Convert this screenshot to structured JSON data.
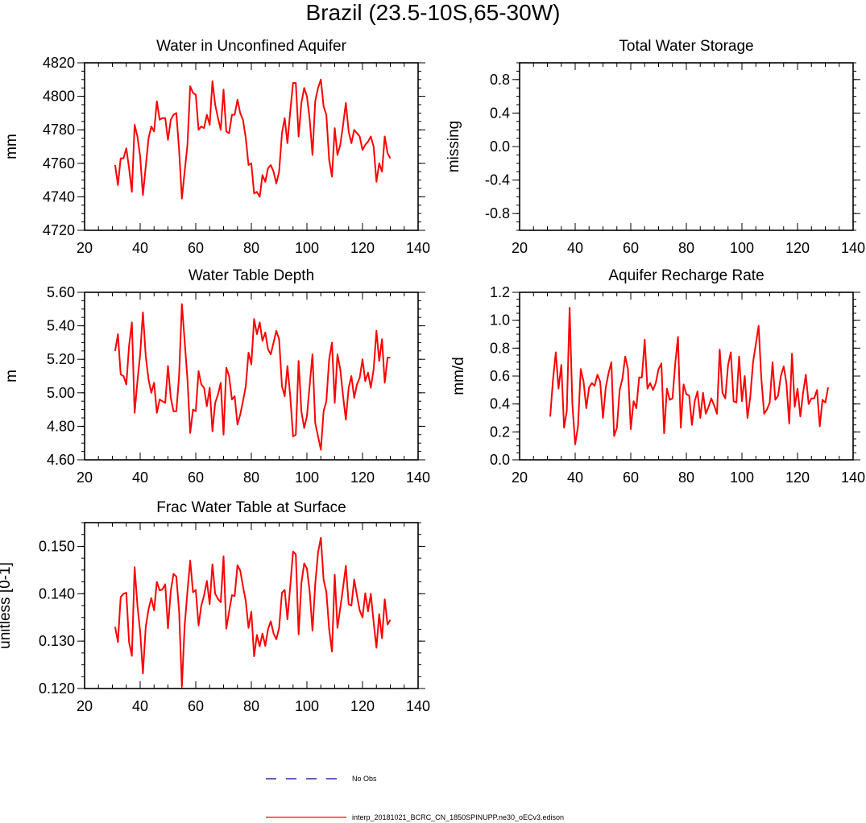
{
  "figure_title": "Brazil (23.5-10S,65-30W)",
  "colors": {
    "model": "#ff0000",
    "obs": "#00008b",
    "axis": "#000000"
  },
  "legend": {
    "obs_label": "No Obs",
    "model_label": "interp_20181021_BCRC_CN_1850SPINUPP.ne30_oECv3.edison"
  },
  "chart_data": [
    {
      "type": "line",
      "title": "Water in Unconfined Aquifer",
      "ylabel": "mm",
      "xlim": [
        20,
        140
      ],
      "ylim": [
        4720,
        4820
      ],
      "xticks": [
        20,
        40,
        60,
        80,
        100,
        120,
        140
      ],
      "yticks": [
        4720,
        4740,
        4760,
        4780,
        4800,
        4820
      ],
      "ytick_labels": [
        "4720",
        "4740",
        "4760",
        "4780",
        "4800",
        "4820"
      ],
      "series": [
        {
          "name": "model",
          "x_start": 31,
          "values": [
            4759,
            4747,
            4763,
            4763,
            4769,
            4757,
            4743,
            4783,
            4776,
            4764,
            4741,
            4758,
            4775,
            4782,
            4779,
            4797,
            4786,
            4787,
            4787,
            4774,
            4786,
            4789,
            4790,
            4768,
            4739,
            4755,
            4771,
            4806,
            4802,
            4801,
            4780,
            4782,
            4781,
            4789,
            4783,
            4809,
            4795,
            4787,
            4780,
            4804,
            4779,
            4778,
            4789,
            4789,
            4798,
            4790,
            4786,
            4775,
            4759,
            4760,
            4742,
            4743,
            4740,
            4753,
            4749,
            4757,
            4759,
            4755,
            4748,
            4755,
            4778,
            4787,
            4772,
            4791,
            4808,
            4808,
            4776,
            4796,
            4805,
            4800,
            4786,
            4765,
            4797,
            4805,
            4810,
            4794,
            4789,
            4762,
            4752,
            4781,
            4765,
            4771,
            4783,
            4796,
            4779,
            4772,
            4780,
            4778,
            4776,
            4768,
            4771,
            4773,
            4776,
            4770,
            4749,
            4760,
            4755,
            4776,
            4766,
            4763
          ]
        }
      ]
    },
    {
      "type": "line",
      "title": "Total Water Storage",
      "ylabel": "missing",
      "xlim": [
        20,
        140
      ],
      "ylim": [
        -1,
        1
      ],
      "xticks": [
        20,
        40,
        60,
        80,
        100,
        120,
        140
      ],
      "yticks": [
        -0.8,
        -0.4,
        0.0,
        0.4,
        0.8
      ],
      "ytick_labels": [
        "-0.8",
        "-0.4",
        "0.0",
        "0.4",
        "0.8"
      ],
      "series": []
    },
    {
      "type": "line",
      "title": "Water Table Depth",
      "ylabel": "m",
      "xlim": [
        20,
        140
      ],
      "ylim": [
        4.6,
        5.6
      ],
      "xticks": [
        20,
        40,
        60,
        80,
        100,
        120,
        140
      ],
      "yticks": [
        4.6,
        4.8,
        5.0,
        5.2,
        5.4,
        5.6
      ],
      "ytick_labels": [
        "4.60",
        "4.80",
        "5.00",
        "5.20",
        "5.40",
        "5.60"
      ],
      "series": [
        {
          "name": "model",
          "x_start": 31,
          "values": [
            5.25,
            5.35,
            5.11,
            5.1,
            5.05,
            5.28,
            5.42,
            4.88,
            5.07,
            5.23,
            5.48,
            5.22,
            5.08,
            5.0,
            5.06,
            4.88,
            4.96,
            4.95,
            4.94,
            5.16,
            4.97,
            4.89,
            4.89,
            5.1,
            5.53,
            5.31,
            5.08,
            4.76,
            4.9,
            4.89,
            5.13,
            5.05,
            5.03,
            4.92,
            5.03,
            4.77,
            4.94,
            4.99,
            5.06,
            4.75,
            5.15,
            5.1,
            4.96,
            4.98,
            4.81,
            4.87,
            4.95,
            5.04,
            5.24,
            5.17,
            5.44,
            5.35,
            5.42,
            5.31,
            5.36,
            5.26,
            5.23,
            5.3,
            5.37,
            5.32,
            5.04,
            4.98,
            5.16,
            4.98,
            4.74,
            4.75,
            5.19,
            4.89,
            4.79,
            4.86,
            5.05,
            5.23,
            4.82,
            4.74,
            4.66,
            4.89,
            4.95,
            5.2,
            5.3,
            4.94,
            5.23,
            5.14,
            4.98,
            4.84,
            5.03,
            5.1,
            4.97,
            5.05,
            5.09,
            5.2,
            5.07,
            5.12,
            5.03,
            5.14,
            5.37,
            5.19,
            5.32,
            5.06,
            5.21,
            5.21
          ]
        }
      ]
    },
    {
      "type": "line",
      "title": "Aquifer Recharge Rate",
      "ylabel": "mm/d",
      "xlim": [
        20,
        140
      ],
      "ylim": [
        0,
        1.2
      ],
      "xticks": [
        20,
        40,
        60,
        80,
        100,
        120,
        140
      ],
      "yticks": [
        0.0,
        0.2,
        0.4,
        0.6,
        0.8,
        1.0,
        1.2
      ],
      "ytick_labels": [
        "0.0",
        "0.2",
        "0.4",
        "0.6",
        "0.8",
        "1.0",
        "1.2"
      ],
      "series": [
        {
          "name": "model",
          "x_start": 31,
          "values": [
            0.31,
            0.57,
            0.77,
            0.51,
            0.68,
            0.23,
            0.35,
            1.09,
            0.4,
            0.11,
            0.24,
            0.65,
            0.56,
            0.37,
            0.52,
            0.55,
            0.53,
            0.61,
            0.56,
            0.3,
            0.52,
            0.62,
            0.7,
            0.17,
            0.23,
            0.5,
            0.58,
            0.74,
            0.65,
            0.22,
            0.42,
            0.37,
            0.59,
            0.59,
            0.86,
            0.51,
            0.55,
            0.5,
            0.55,
            0.65,
            0.69,
            0.19,
            0.51,
            0.43,
            0.44,
            0.69,
            0.88,
            0.23,
            0.54,
            0.47,
            0.46,
            0.25,
            0.42,
            0.49,
            0.3,
            0.48,
            0.33,
            0.38,
            0.44,
            0.39,
            0.33,
            0.79,
            0.48,
            0.44,
            0.68,
            0.77,
            0.42,
            0.41,
            0.74,
            0.42,
            0.6,
            0.3,
            0.45,
            0.7,
            0.83,
            0.96,
            0.58,
            0.33,
            0.36,
            0.41,
            0.7,
            0.43,
            0.46,
            0.6,
            0.67,
            0.55,
            0.26,
            0.76,
            0.38,
            0.51,
            0.31,
            0.48,
            0.61,
            0.4,
            0.44,
            0.44,
            0.5,
            0.24,
            0.43,
            0.41,
            0.52
          ]
        }
      ]
    },
    {
      "type": "line",
      "title": "Frac Water Table at Surface",
      "ylabel": "unitless [0-1]",
      "xlim": [
        20,
        140
      ],
      "ylim": [
        0.12,
        0.155
      ],
      "xticks": [
        20,
        40,
        60,
        80,
        100,
        120,
        140
      ],
      "yticks": [
        0.12,
        0.13,
        0.14,
        0.15
      ],
      "ytick_labels": [
        "0.120",
        "0.130",
        "0.140",
        "0.150"
      ],
      "series": [
        {
          "name": "model",
          "x_start": 31,
          "values": [
            0.133,
            0.1298,
            0.1393,
            0.14,
            0.1402,
            0.1298,
            0.1269,
            0.1456,
            0.1375,
            0.132,
            0.1232,
            0.133,
            0.1367,
            0.1391,
            0.1365,
            0.1425,
            0.1407,
            0.1409,
            0.142,
            0.1327,
            0.1406,
            0.1442,
            0.1436,
            0.1364,
            0.1205,
            0.1332,
            0.1405,
            0.147,
            0.1403,
            0.1408,
            0.1333,
            0.1375,
            0.1396,
            0.1427,
            0.1378,
            0.1462,
            0.14,
            0.1389,
            0.1382,
            0.1479,
            0.1326,
            0.1362,
            0.1397,
            0.1395,
            0.146,
            0.1449,
            0.1416,
            0.1384,
            0.1328,
            0.1362,
            0.1268,
            0.1313,
            0.1289,
            0.1316,
            0.129,
            0.1325,
            0.1342,
            0.1316,
            0.1304,
            0.1328,
            0.1402,
            0.1408,
            0.1346,
            0.1416,
            0.1489,
            0.1483,
            0.1314,
            0.1422,
            0.1464,
            0.1453,
            0.1403,
            0.1322,
            0.142,
            0.1487,
            0.1518,
            0.1429,
            0.1404,
            0.1325,
            0.1278,
            0.144,
            0.1328,
            0.137,
            0.1413,
            0.1459,
            0.1378,
            0.1375,
            0.143,
            0.1396,
            0.1365,
            0.135,
            0.1401,
            0.1363,
            0.14,
            0.134,
            0.1286,
            0.1357,
            0.1306,
            0.1388,
            0.1335,
            0.1345
          ]
        }
      ]
    }
  ]
}
